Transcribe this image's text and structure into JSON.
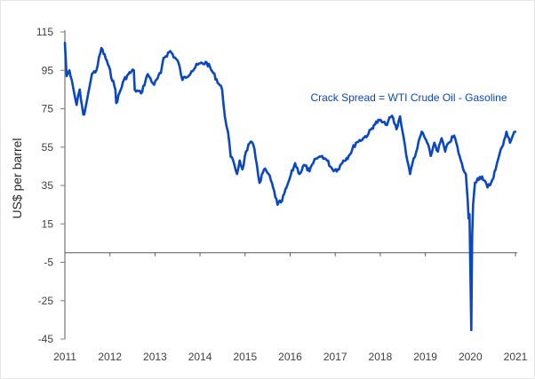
{
  "chart_data": {
    "type": "line",
    "title": "",
    "xlabel": "",
    "ylabel": "US$ per barrel",
    "annotation": "Crack Spread = WTI Crude Oil - Gasoline",
    "xlim": [
      2011,
      2021
    ],
    "ylim": [
      -45,
      115
    ],
    "x_ticks": [
      "2011",
      "2012",
      "2013",
      "2014",
      "2015",
      "2016",
      "2017",
      "2018",
      "2019",
      "2020",
      "2021"
    ],
    "x_tick_values": [
      2011,
      2012,
      2013,
      2014,
      2015,
      2016,
      2017,
      2018,
      2019,
      2020,
      2021
    ],
    "y_ticks": [
      "115",
      "95",
      "75",
      "55",
      "35",
      "15",
      "-5",
      "-25",
      "-45"
    ],
    "y_tick_values": [
      115,
      95,
      75,
      55,
      35,
      15,
      -5,
      -25,
      -45
    ],
    "grid": false,
    "legend": "none",
    "line_color": "#0a47c2",
    "series": [
      {
        "name": "Crack Spread",
        "x": [
          2011.0,
          2011.04,
          2011.1,
          2011.26,
          2011.33,
          2011.41,
          2011.43,
          2011.6,
          2011.7,
          2011.81,
          2011.93,
          2012.12,
          2012.14,
          2012.31,
          2012.41,
          2012.53,
          2012.55,
          2012.69,
          2012.84,
          2012.98,
          2013.13,
          2013.19,
          2013.34,
          2013.52,
          2013.61,
          2013.81,
          2013.95,
          2014.15,
          2014.27,
          2014.49,
          2014.55,
          2014.62,
          2014.68,
          2014.76,
          2014.82,
          2014.88,
          2014.94,
          2015.02,
          2015.1,
          2015.18,
          2015.26,
          2015.32,
          2015.42,
          2015.52,
          2015.62,
          2015.72,
          2015.82,
          2015.92,
          2015.99,
          2016.11,
          2016.21,
          2016.31,
          2016.43,
          2016.57,
          2016.71,
          2016.82,
          2016.94,
          2017.06,
          2017.18,
          2017.3,
          2017.46,
          2017.62,
          2017.74,
          2017.86,
          2017.98,
          2018.12,
          2018.26,
          2018.36,
          2018.44,
          2018.52,
          2018.6,
          2018.66,
          2018.74,
          2018.8,
          2018.92,
          2019.04,
          2019.12,
          2019.2,
          2019.28,
          2019.36,
          2019.44,
          2019.52,
          2019.64,
          2019.76,
          2019.84,
          2019.9,
          2019.94,
          2019.96,
          2019.98,
          2020.02,
          2020.04,
          2020.06,
          2020.1,
          2020.16,
          2020.26,
          2020.38,
          2020.46,
          2020.56,
          2020.62,
          2020.7,
          2020.8,
          2020.88,
          2020.94,
          2021.0
        ],
        "values": [
          109.4,
          92.0,
          95.0,
          77.0,
          85.0,
          72.0,
          72.0,
          93.0,
          95.0,
          106.6,
          100.0,
          85.0,
          78.0,
          90.0,
          93.0,
          95.0,
          85.0,
          83.0,
          93.0,
          87.5,
          93.6,
          101.5,
          105.0,
          99.0,
          90.0,
          94.5,
          98.0,
          99.0,
          94.5,
          85.0,
          71.0,
          63.0,
          50.0,
          46.0,
          41.0,
          48.0,
          43.4,
          52.7,
          57.0,
          56.4,
          46.0,
          36.4,
          43.4,
          41.0,
          34.0,
          25.0,
          27.0,
          34.0,
          38.7,
          46.6,
          41.0,
          45.7,
          42.4,
          49.0,
          50.4,
          48.0,
          43.4,
          43.4,
          48.0,
          50.4,
          57.3,
          59.6,
          62.0,
          66.6,
          69.0,
          66.6,
          71.3,
          64.3,
          71.0,
          59.7,
          48.0,
          41.0,
          49.0,
          52.7,
          63.0,
          57.3,
          50.4,
          57.3,
          52.7,
          59.6,
          52.7,
          57.3,
          61.0,
          50.4,
          43.4,
          41.0,
          27.0,
          17.8,
          20.0,
          -40.3,
          8.5,
          24.8,
          36.4,
          38.7,
          39.7,
          34.0,
          36.4,
          43.4,
          49.0,
          55.0,
          63.0,
          57.3,
          61.0,
          63.0
        ]
      }
    ]
  }
}
